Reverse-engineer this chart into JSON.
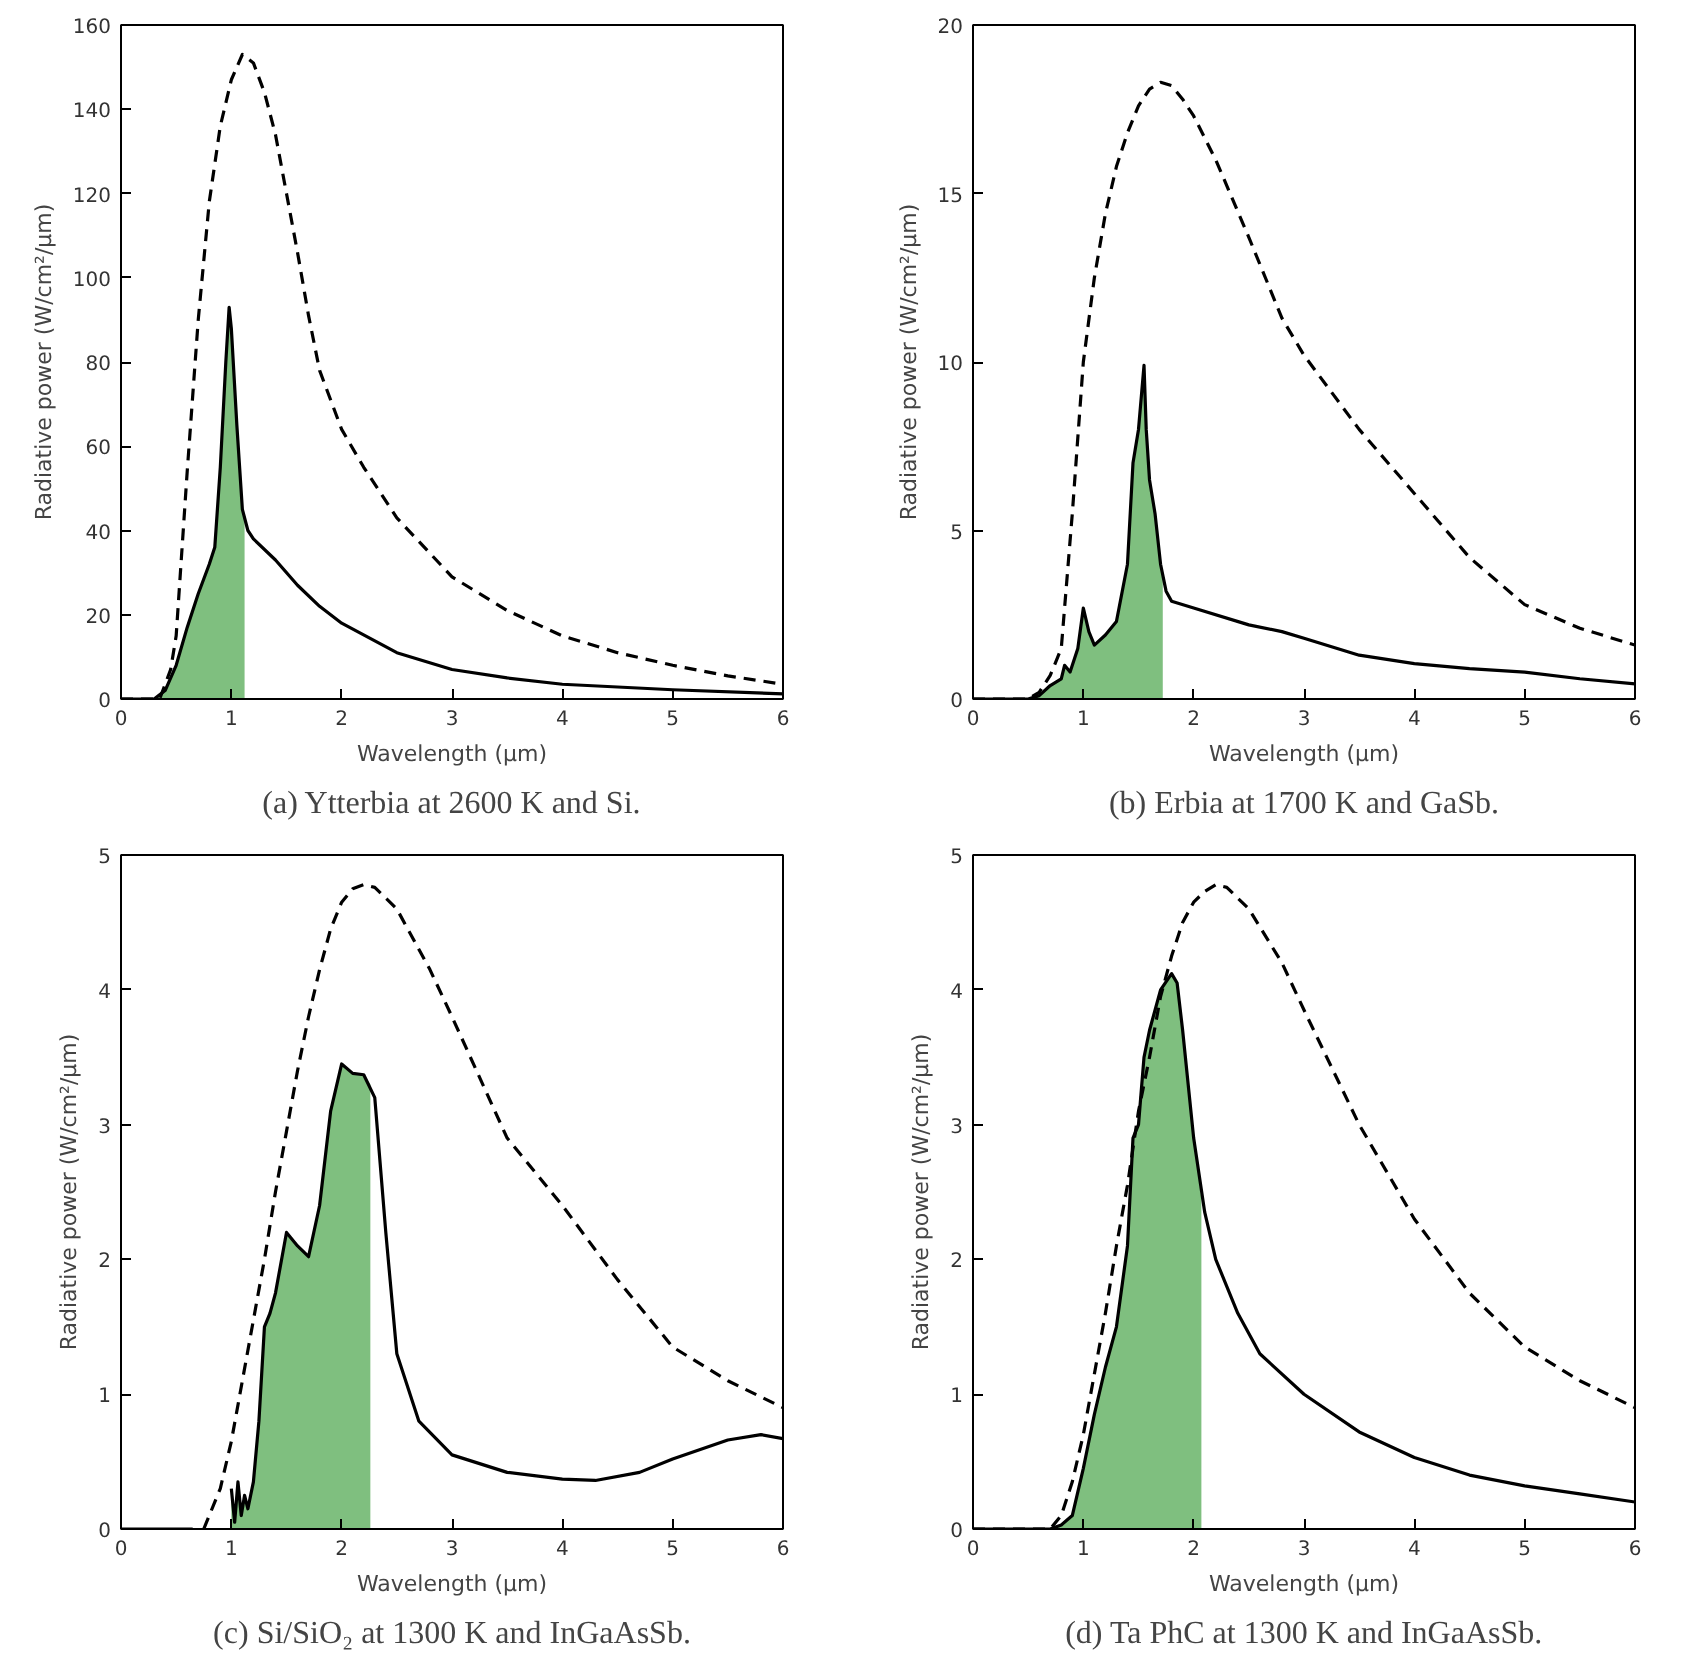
{
  "chart_data": [
    {
      "type": "line",
      "xlabel": "Wavelength (μm)",
      "ylabel": "Radiative power (W/cm²/μm)",
      "annotations": [
        "(a) Ytterbia at 2600 K and Si."
      ],
      "xlim": [
        0,
        6
      ],
      "xticks": [
        0,
        1,
        2,
        3,
        4,
        5,
        6
      ],
      "ylim": [
        0,
        160
      ],
      "yticks": [
        0,
        20,
        40,
        60,
        80,
        100,
        120,
        140,
        160
      ],
      "grid": false,
      "series": [
        {
          "type": "area",
          "color": "#7fbf7f",
          "x": [
            0.3,
            0.4,
            0.5,
            0.6,
            0.7,
            0.8,
            0.85,
            0.9,
            0.95,
            0.98,
            1.0,
            1.05,
            1.1,
            1.12
          ],
          "values": [
            0,
            2,
            8,
            17,
            25,
            32,
            36,
            55,
            80,
            93,
            88,
            65,
            45,
            42
          ]
        },
        {
          "line_style": "dashed",
          "color": "#000000",
          "x": [
            0,
            0.35,
            0.45,
            0.5,
            0.6,
            0.7,
            0.8,
            0.9,
            1.0,
            1.1,
            1.2,
            1.3,
            1.4,
            1.5,
            1.6,
            1.7,
            1.8,
            2.0,
            2.2,
            2.5,
            3.0,
            3.5,
            4.0,
            4.5,
            5.0,
            5.5,
            6.0
          ],
          "values": [
            0,
            0,
            7,
            15,
            54,
            90,
            118,
            136,
            147,
            153,
            151,
            144,
            134,
            120,
            106,
            91,
            78,
            64,
            55,
            43,
            29,
            21,
            15,
            11,
            8,
            5.5,
            3.5
          ]
        },
        {
          "line_style": "solid",
          "color": "#000000",
          "x": [
            0,
            0.3,
            0.4,
            0.5,
            0.6,
            0.7,
            0.8,
            0.85,
            0.9,
            0.95,
            0.98,
            1.0,
            1.05,
            1.1,
            1.15,
            1.2,
            1.4,
            1.6,
            1.8,
            2.0,
            2.5,
            3.0,
            3.5,
            4.0,
            5.0,
            6.0
          ],
          "values": [
            0,
            0,
            2,
            8,
            17,
            25,
            32,
            36,
            55,
            80,
            93,
            88,
            65,
            45,
            40,
            38,
            33,
            27,
            22,
            18,
            11,
            7,
            5,
            3.5,
            2.2,
            1.2
          ]
        }
      ]
    },
    {
      "type": "line",
      "xlabel": "Wavelength (μm)",
      "ylabel": "Radiative power (W/cm²/μm)",
      "annotations": [
        "(b) Erbia at 1700 K and GaSb."
      ],
      "xlim": [
        0,
        6
      ],
      "xticks": [
        0,
        1,
        2,
        3,
        4,
        5,
        6
      ],
      "ylim": [
        0,
        20
      ],
      "yticks": [
        0,
        5,
        10,
        15,
        20
      ],
      "grid": false,
      "series": [
        {
          "type": "area",
          "color": "#7fbf7f",
          "x": [
            0.5,
            0.6,
            0.7,
            0.8,
            0.83,
            0.88,
            0.95,
            1.0,
            1.05,
            1.1,
            1.2,
            1.3,
            1.4,
            1.45,
            1.5,
            1.55,
            1.57,
            1.6,
            1.65,
            1.7,
            1.72
          ],
          "values": [
            0,
            0.1,
            0.4,
            0.6,
            1.0,
            0.8,
            1.5,
            2.7,
            2.0,
            1.6,
            1.9,
            2.3,
            4.0,
            7,
            8,
            9.9,
            8,
            6.5,
            5.5,
            4,
            3.7
          ]
        },
        {
          "line_style": "dashed",
          "color": "#000000",
          "x": [
            0,
            0.5,
            0.6,
            0.7,
            0.8,
            0.9,
            1.0,
            1.1,
            1.2,
            1.3,
            1.4,
            1.5,
            1.6,
            1.7,
            1.8,
            1.9,
            2.0,
            2.2,
            2.5,
            2.8,
            3.0,
            3.5,
            4.0,
            4.5,
            5.0,
            5.5,
            6.0
          ],
          "values": [
            0,
            0,
            0.2,
            0.7,
            1.5,
            5.5,
            10,
            12.5,
            14.4,
            15.8,
            16.8,
            17.6,
            18.1,
            18.3,
            18.2,
            17.8,
            17.3,
            16,
            13.7,
            11.3,
            10.2,
            8,
            6.1,
            4.2,
            2.8,
            2.1,
            1.6
          ]
        },
        {
          "line_style": "solid",
          "color": "#000000",
          "x": [
            0,
            0.5,
            0.6,
            0.7,
            0.8,
            0.83,
            0.88,
            0.95,
            1.0,
            1.05,
            1.1,
            1.2,
            1.3,
            1.4,
            1.45,
            1.5,
            1.55,
            1.57,
            1.6,
            1.65,
            1.7,
            1.75,
            1.8,
            2.0,
            2.5,
            2.8,
            3.0,
            3.5,
            4.0,
            4.5,
            5.0,
            5.5,
            6.0
          ],
          "values": [
            0,
            0,
            0.1,
            0.4,
            0.6,
            1.0,
            0.8,
            1.5,
            2.7,
            2.0,
            1.6,
            1.9,
            2.3,
            4.0,
            7,
            8,
            9.9,
            8,
            6.5,
            5.5,
            4,
            3.2,
            2.9,
            2.7,
            2.2,
            2.0,
            1.8,
            1.3,
            1.05,
            0.9,
            0.8,
            0.6,
            0.45
          ]
        }
      ]
    },
    {
      "type": "line",
      "xlabel": "Wavelength (μm)",
      "ylabel": "Radiative power (W/cm²/μm)",
      "annotations": [
        "(c) Si/SiO₂ at 1300 K and InGaAsSb."
      ],
      "xlim": [
        0,
        6
      ],
      "xticks": [
        0,
        1,
        2,
        3,
        4,
        5,
        6
      ],
      "ylim": [
        0,
        5
      ],
      "yticks": [
        0,
        1,
        2,
        3,
        4,
        5
      ],
      "grid": false,
      "series": [
        {
          "type": "area",
          "color": "#7fbf7f",
          "x": [
            1.0,
            1.03,
            1.06,
            1.09,
            1.12,
            1.15,
            1.2,
            1.25,
            1.3,
            1.35,
            1.4,
            1.5,
            1.6,
            1.7,
            1.8,
            1.9,
            2.0,
            2.1,
            2.2,
            2.26
          ],
          "values": [
            0.3,
            0.05,
            0.35,
            0.1,
            0.25,
            0.15,
            0.35,
            0.8,
            1.5,
            1.6,
            1.75,
            2.2,
            2.1,
            2.02,
            2.4,
            3.1,
            3.45,
            3.38,
            3.37,
            3.3
          ]
        },
        {
          "line_style": "dashed",
          "color": "#000000",
          "x": [
            0.75,
            0.9,
            1.0,
            1.1,
            1.2,
            1.3,
            1.4,
            1.5,
            1.6,
            1.7,
            1.8,
            1.9,
            2.0,
            2.1,
            2.2,
            2.3,
            2.5,
            2.8,
            3.0,
            3.5,
            4.0,
            4.5,
            5.0,
            5.5,
            6.0
          ],
          "values": [
            0,
            0.3,
            0.65,
            1.1,
            1.55,
            2.0,
            2.5,
            2.95,
            3.4,
            3.8,
            4.15,
            4.45,
            4.65,
            4.75,
            4.78,
            4.76,
            4.6,
            4.15,
            3.8,
            2.9,
            2.4,
            1.85,
            1.35,
            1.1,
            0.9
          ]
        },
        {
          "line_style": "solid",
          "color": "#000000",
          "x": [
            0,
            0.65,
            0.8,
            1.0,
            1.03,
            1.06,
            1.09,
            1.12,
            1.15,
            1.2,
            1.25,
            1.3,
            1.35,
            1.4,
            1.5,
            1.6,
            1.7,
            1.8,
            1.9,
            2.0,
            2.1,
            2.2,
            2.3,
            2.4,
            2.5,
            2.7,
            3.0,
            3.5,
            4.0,
            4.3,
            4.7,
            5.0,
            5.5,
            5.8,
            6.0
          ],
          "values": [
            0,
            0,
            null,
            0.3,
            0.05,
            0.35,
            0.1,
            0.25,
            0.15,
            0.35,
            0.8,
            1.5,
            1.6,
            1.75,
            2.2,
            2.1,
            2.02,
            2.4,
            3.1,
            3.45,
            3.38,
            3.37,
            3.2,
            2.2,
            1.3,
            0.8,
            0.55,
            0.42,
            0.37,
            0.36,
            0.42,
            0.52,
            0.66,
            0.7,
            0.67
          ]
        }
      ]
    },
    {
      "type": "line",
      "xlabel": "Wavelength (μm)",
      "ylabel": "Radiative power (W/cm²/μm)",
      "annotations": [
        "(d) Ta PhC at 1300 K and InGaAsSb."
      ],
      "xlim": [
        0,
        6
      ],
      "xticks": [
        0,
        1,
        2,
        3,
        4,
        5,
        6
      ],
      "ylim": [
        0,
        5
      ],
      "yticks": [
        0,
        1,
        2,
        3,
        4,
        5
      ],
      "grid": false,
      "series": [
        {
          "type": "area",
          "color": "#7fbf7f",
          "x": [
            0.7,
            0.8,
            0.9,
            1.0,
            1.1,
            1.2,
            1.3,
            1.4,
            1.45,
            1.5,
            1.55,
            1.6,
            1.7,
            1.8,
            1.85,
            1.9,
            2.0,
            2.07
          ],
          "values": [
            0,
            0.03,
            0.1,
            0.45,
            0.85,
            1.2,
            1.5,
            2.1,
            2.9,
            3.0,
            3.5,
            3.7,
            4.0,
            4.12,
            4.05,
            3.7,
            2.9,
            2.45
          ]
        },
        {
          "line_style": "dashed",
          "color": "#000000",
          "x": [
            0,
            0.7,
            0.8,
            0.9,
            1.0,
            1.1,
            1.2,
            1.3,
            1.4,
            1.5,
            1.6,
            1.7,
            1.8,
            1.9,
            2.0,
            2.1,
            2.2,
            2.3,
            2.5,
            2.8,
            3.0,
            3.5,
            4.0,
            4.5,
            5.0,
            5.5,
            6.0
          ],
          "values": [
            0,
            0,
            0.1,
            0.35,
            0.7,
            1.15,
            1.6,
            2.1,
            2.55,
            3.1,
            3.5,
            3.95,
            4.25,
            4.5,
            4.65,
            4.73,
            4.78,
            4.76,
            4.6,
            4.2,
            3.85,
            3.0,
            2.3,
            1.75,
            1.35,
            1.1,
            0.9
          ]
        },
        {
          "line_style": "solid",
          "color": "#000000",
          "x": [
            0,
            0.7,
            0.8,
            0.9,
            1.0,
            1.1,
            1.2,
            1.3,
            1.4,
            1.45,
            1.5,
            1.55,
            1.6,
            1.7,
            1.8,
            1.85,
            1.9,
            2.0,
            2.1,
            2.2,
            2.4,
            2.6,
            3.0,
            3.5,
            4.0,
            4.5,
            5.0,
            5.5,
            6.0
          ],
          "values": [
            0,
            0,
            0.03,
            0.1,
            0.45,
            0.85,
            1.2,
            1.5,
            2.1,
            2.9,
            3.0,
            3.5,
            3.7,
            4.0,
            4.12,
            4.05,
            3.7,
            2.9,
            2.35,
            2.0,
            1.6,
            1.3,
            1.0,
            0.72,
            0.53,
            0.4,
            0.32,
            0.26,
            0.2
          ]
        }
      ]
    }
  ]
}
